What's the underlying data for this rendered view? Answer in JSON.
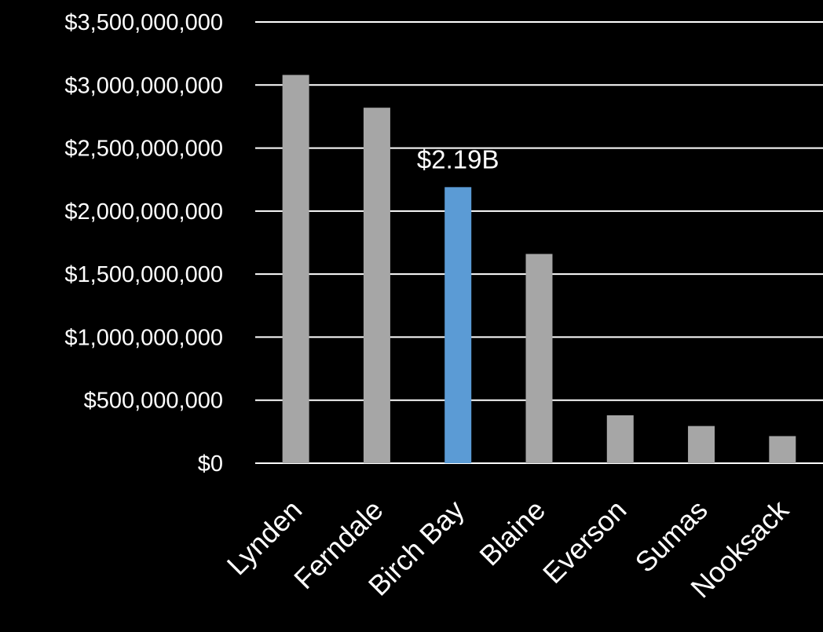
{
  "chart_data": {
    "type": "bar",
    "categories": [
      "Lynden",
      "Ferndale",
      "Birch Bay",
      "Blaine",
      "Everson",
      "Sumas",
      "Nooksack"
    ],
    "values": [
      3080000000,
      2820000000,
      2190000000,
      1660000000,
      380000000,
      295000000,
      215000000
    ],
    "colors": [
      "#a6a6a6",
      "#a6a6a6",
      "#5b9bd5",
      "#a6a6a6",
      "#a6a6a6",
      "#a6a6a6",
      "#a6a6a6"
    ],
    "highlight_index": 2,
    "data_labels": [
      "",
      "",
      "$2.19B",
      "",
      "",
      "",
      ""
    ],
    "ylim": [
      0,
      3500000000
    ],
    "yticks": [
      0,
      500000000,
      1000000000,
      1500000000,
      2000000000,
      2500000000,
      3000000000,
      3500000000
    ],
    "ytick_labels": [
      "$0",
      "$500,000,000",
      "$1,000,000,000",
      "$1,500,000,000",
      "$2,000,000,000",
      "$2,500,000,000",
      "$3,000,000,000",
      "$3,500,000,000"
    ],
    "grid": true,
    "background": "#000000",
    "gridline_color": "#ffffff",
    "text_color": "#ffffff"
  }
}
